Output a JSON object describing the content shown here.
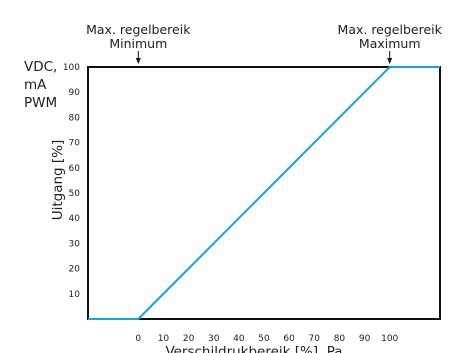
{
  "chart_data": {
    "type": "line",
    "title": "",
    "xlabel": "Verschildrukbereik [%], Pa",
    "ylabel": "Uitgang [%]",
    "y_unit_label": [
      "VDC,",
      "mA",
      "PWM"
    ],
    "xlim": [
      -20,
      120
    ],
    "ylim": [
      0,
      100
    ],
    "x_ticks": [
      0,
      10,
      20,
      30,
      40,
      50,
      60,
      70,
      80,
      90,
      100
    ],
    "y_ticks": [
      10,
      20,
      30,
      40,
      50,
      60,
      70,
      80,
      90,
      100
    ],
    "grid": false,
    "line_color": "#1aa3d4",
    "series": [
      {
        "x": [
          -20,
          0,
          100,
          120
        ],
        "y": [
          0,
          0,
          100,
          100
        ]
      }
    ],
    "annotations": [
      {
        "lines": [
          "Max. regelbereik",
          "Minimum"
        ],
        "x": 0
      },
      {
        "lines": [
          "Max. regelbereik",
          "Maximum"
        ],
        "x": 100
      }
    ]
  }
}
